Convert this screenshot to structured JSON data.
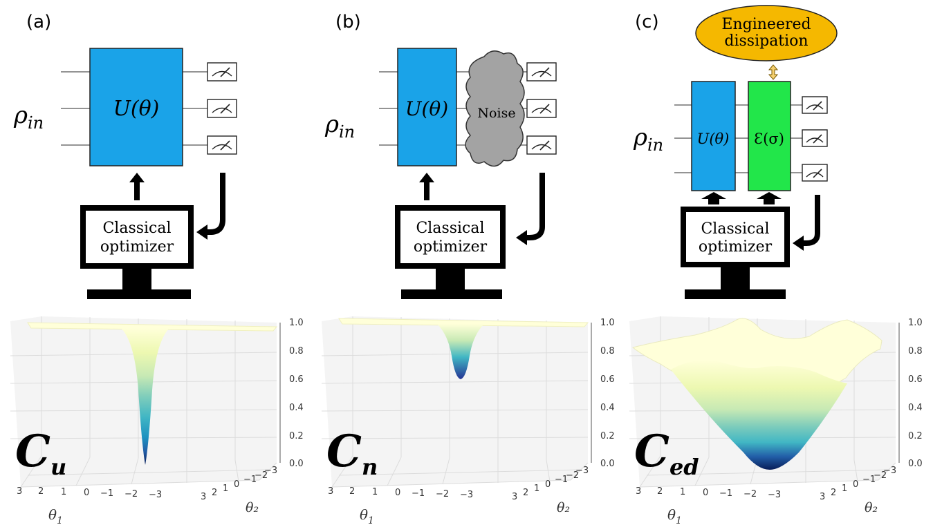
{
  "panels": [
    {
      "label": "(a)",
      "rho": "ρ",
      "rho_sub": "in",
      "gate": "U(θ)",
      "gate_color": "#1aa3e8",
      "optimizer": [
        "Classical",
        "optimizer"
      ],
      "cost_symbol": "C",
      "cost_sub": "u",
      "surface": "narrow-deep-well",
      "min_value": 0.0
    },
    {
      "label": "(b)",
      "rho": "ρ",
      "rho_sub": "in",
      "gate": "U(θ)",
      "gate_color": "#1aa3e8",
      "noise_label": "Noise",
      "noise_color": "#a3a3a3",
      "optimizer": [
        "Classical",
        "optimizer"
      ],
      "cost_symbol": "C",
      "cost_sub": "n",
      "surface": "shallow-well",
      "min_value": 0.6
    },
    {
      "label": "(c)",
      "rho": "ρ",
      "rho_sub": "in",
      "gate": "U(θ)",
      "gate_color": "#1aa3e8",
      "dissipator": "Ɛ(σ)",
      "dissipator_color": "#22e64a",
      "engineered": [
        "Engineered",
        "dissipation"
      ],
      "engineered_color": "#f5b800",
      "optimizer": [
        "Classical",
        "optimizer"
      ],
      "cost_symbol": "C",
      "cost_sub": "ed",
      "surface": "wide-well",
      "min_value": 0.0
    }
  ],
  "axes": {
    "z_ticks": [
      "1.0",
      "0.8",
      "0.6",
      "0.4",
      "0.2",
      "0.0"
    ],
    "theta1_ticks": [
      "3",
      "2",
      "1",
      "0",
      "−1",
      "−2",
      "−3"
    ],
    "theta2_ticks": [
      "3",
      "2",
      "1",
      "0",
      "−1",
      "−2",
      "−3"
    ],
    "theta1_label": "θ",
    "theta1_sub": "1",
    "theta2_label": "θ₂"
  },
  "colormap": [
    "#ffffd9",
    "#edf8b1",
    "#c7e9b4",
    "#7fcdbb",
    "#41b6c4",
    "#1d91c0",
    "#225ea8",
    "#253494",
    "#081d58"
  ]
}
